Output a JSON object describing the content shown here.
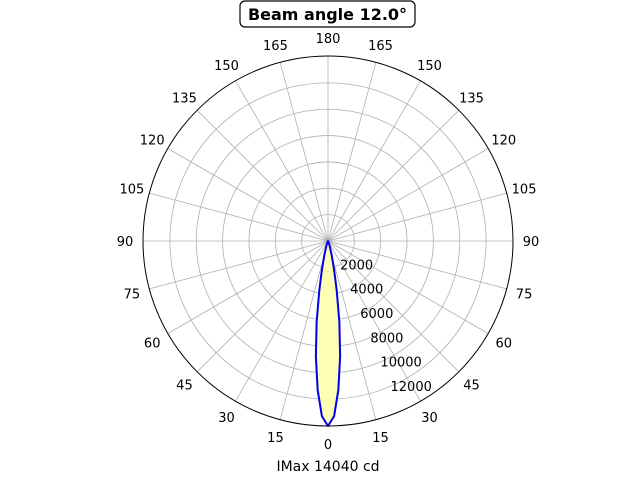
{
  "chart_data": {
    "type": "polar",
    "title": "Beam angle 12.0°",
    "xlabel": "IMax 14040 cd",
    "angle_ticks_left": [
      "0",
      "15",
      "30",
      "45",
      "60",
      "75",
      "90",
      "105",
      "120",
      "135",
      "150",
      "165",
      "180"
    ],
    "angle_ticks_right": [
      "15",
      "30",
      "45",
      "60",
      "75",
      "90",
      "105",
      "120",
      "135",
      "150",
      "165"
    ],
    "radial_ticks": [
      2000,
      4000,
      6000,
      8000,
      10000,
      12000
    ],
    "radial_tick_labels": [
      "2000",
      "4000",
      "6000",
      "8000",
      "10000",
      "12000"
    ],
    "rmax": 14040,
    "grid": true,
    "series": [
      {
        "angle_deg": [
          -90,
          -30,
          -20,
          -15,
          -12,
          -10,
          -8,
          -6,
          -4,
          -2,
          0,
          2,
          4,
          6,
          8,
          10,
          12,
          15,
          20,
          30,
          90
        ],
        "intensity": [
          0,
          0,
          300,
          1000,
          2200,
          3800,
          6200,
          8800,
          11300,
          13300,
          14040,
          13300,
          11300,
          8800,
          6200,
          3800,
          2200,
          1000,
          300,
          0,
          0
        ]
      }
    ],
    "line_color": "#0000ee",
    "fill_color": "#ffffb3",
    "grid_color": "#b0b0b0"
  }
}
